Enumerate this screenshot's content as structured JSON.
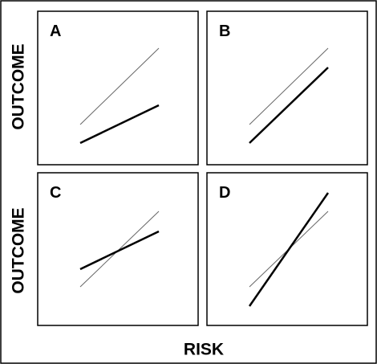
{
  "panels": [
    {
      "label": "A"
    },
    {
      "label": "B"
    },
    {
      "label": "C"
    },
    {
      "label": "D"
    }
  ],
  "y_labels": [
    "OUTCOME",
    "OUTCOME"
  ],
  "x_label": "RISK"
}
